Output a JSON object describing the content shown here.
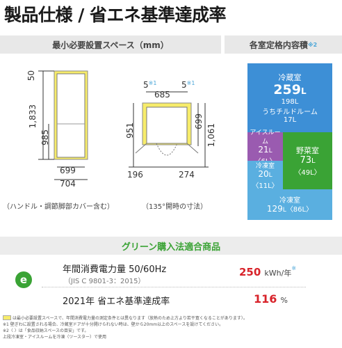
{
  "title": "製品仕様 / 省エネ基準達成率",
  "space_header": "最小必要設置スペース（mm）",
  "capacity_header": "各室定格内容積",
  "capacity_header_sup": "※2",
  "side_view": {
    "top_dim": "50",
    "height_dim": "1,833",
    "door_dim": "985",
    "depth1": "699",
    "depth2": "704",
    "caption": "（ハンドル・調節脚部カバー含む）"
  },
  "top_view": {
    "gap_left": "5",
    "gap_right": "5",
    "gap_sup": "※1",
    "width_dim": "685",
    "left_dim": "951",
    "right_dim1": "699",
    "right_dim2": "1,061",
    "bottom_left": "196",
    "bottom_right": "274",
    "caption": "（135°開時の寸法）"
  },
  "compartments": {
    "fridge": {
      "name": "冷蔵室",
      "vol": "259",
      "unit": "L",
      "sub1": "198L",
      "sub2": "うちチルドルーム",
      "sub3": "17L"
    },
    "ice": {
      "name": "アイスルーム",
      "vol": "21",
      "unit": "L",
      "paren": "〈6L〉"
    },
    "veg": {
      "name": "野菜室",
      "vol": "73",
      "unit": "L",
      "paren": "〈49L〉"
    },
    "freezer_small": {
      "name": "冷凍室",
      "vol": "20",
      "unit": "L",
      "paren": "〈11L〉"
    },
    "freezer": {
      "name": "冷凍室",
      "vol": "129",
      "unit": "L",
      "paren": "〈86L〉"
    }
  },
  "green_title": "グリーン購入法適合商品",
  "energy": {
    "label": "年間消費電力量 50/60Hz",
    "std": "（JIS C 9801-3：2015）",
    "value": "250",
    "unit": "kWh/年",
    "unit_sup": "※",
    "rate_label": "2021年 省エネ基準達成率",
    "rate_value": "116",
    "rate_unit": "%"
  },
  "notes": [
    "は最小必要設置スペースで、年間消費電力量の測定条件とは異なります（放熱のため上方より若干寛くなることがあります）。",
    "※1 壁ぎわに設置される場合、冷蔵室ドアが十分開けられない時は、壁から20mm以上のスペースを設けてください。",
    "※2〈 〉は「食品収納スペースの目安」です。",
    "上段冷凍室・アイスルームを冷凍（ツースター）で使用"
  ],
  "colors": {
    "fridge": "#3d8fd6",
    "ice": "#9a5bb0",
    "veg": "#3aa335",
    "freezer": "#5aafe0",
    "yellow": "#f7ec6a"
  }
}
